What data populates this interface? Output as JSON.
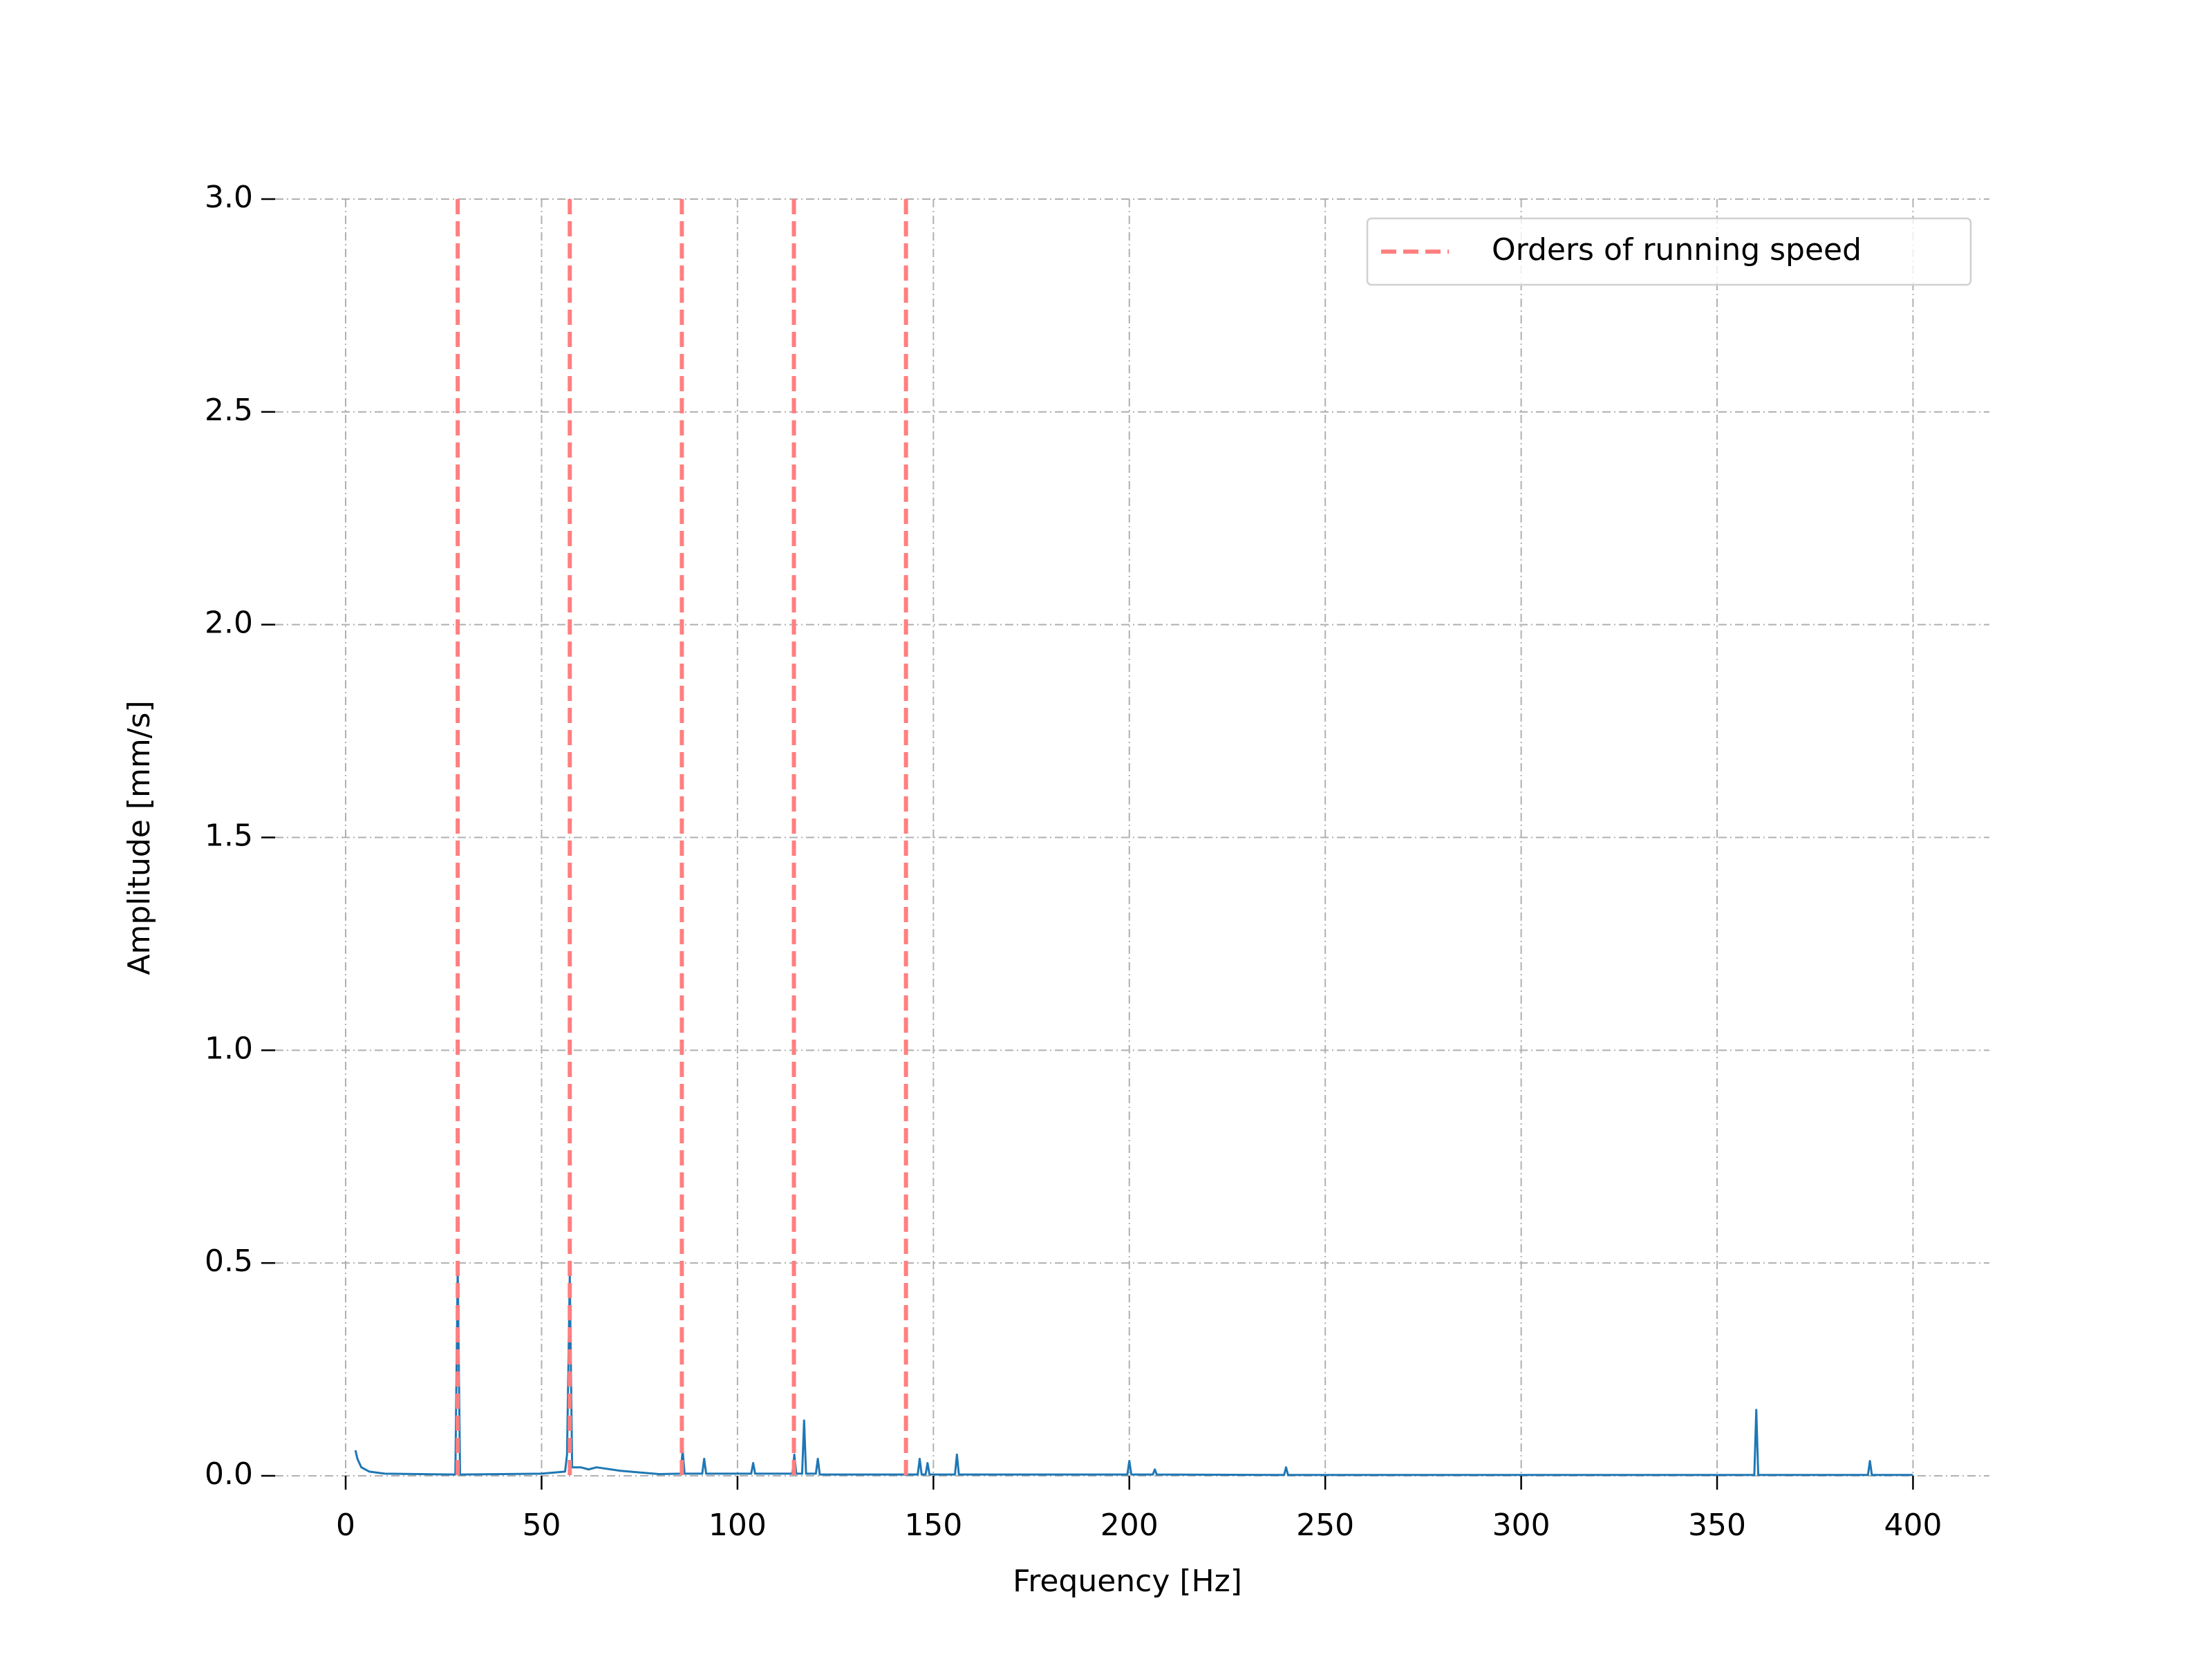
{
  "chart_data": {
    "type": "line",
    "xlabel": "Frequency [Hz]",
    "ylabel": "Amplitude [mm/s]",
    "x": [
      2.5,
      3,
      4,
      6,
      10,
      28,
      28.6,
      29.2,
      50,
      56,
      56.5,
      57.2,
      57.8,
      60,
      62,
      64,
      70,
      75,
      80,
      85.5,
      86,
      86.5,
      91,
      91.5,
      92,
      103.5,
      104,
      104.5,
      114,
      114.5,
      115,
      116.5,
      117,
      117.5,
      120,
      120.5,
      121,
      146,
      146.5,
      147,
      148,
      148.5,
      149,
      155.5,
      156,
      156.5,
      199.5,
      200,
      200.5,
      206,
      206.5,
      207,
      239.5,
      240,
      240.5,
      359.5,
      360,
      360.5,
      388.5,
      389,
      389.5,
      400
    ],
    "values": [
      0.06,
      0.04,
      0.02,
      0.01,
      0.005,
      0.003,
      0.49,
      0.003,
      0.005,
      0.01,
      0.05,
      0.47,
      0.02,
      0.02,
      0.015,
      0.02,
      0.012,
      0.008,
      0.004,
      0.005,
      0.06,
      0.005,
      0.005,
      0.04,
      0.005,
      0.005,
      0.03,
      0.005,
      0.005,
      0.05,
      0.005,
      0.005,
      0.13,
      0.005,
      0.005,
      0.04,
      0.003,
      0.003,
      0.04,
      0.003,
      0.003,
      0.03,
      0.003,
      0.003,
      0.05,
      0.003,
      0.003,
      0.035,
      0.003,
      0.003,
      0.015,
      0.003,
      0.002,
      0.02,
      0.002,
      0.002,
      0.155,
      0.002,
      0.002,
      0.035,
      0.002,
      0.002
    ],
    "color": "#1f77b4",
    "vlines": {
      "name": "Orders of running speed",
      "color": "#ff7f7f",
      "x": [
        28.6,
        57.2,
        85.8,
        114.4,
        143.0
      ]
    },
    "xlim": [
      -18,
      419.5
    ],
    "ylim": [
      0,
      3
    ],
    "xticks": [
      0,
      50,
      100,
      150,
      200,
      250,
      300,
      350,
      400
    ],
    "yticks": [
      {
        "value": 0,
        "label": "0.0"
      },
      0.5,
      {
        "value": 1,
        "label": "1.0"
      },
      1.5,
      {
        "value": 2,
        "label": "2.0"
      },
      2.5,
      {
        "value": 3,
        "label": "3.0"
      }
    ],
    "grid": true,
    "legend": "upper right"
  }
}
